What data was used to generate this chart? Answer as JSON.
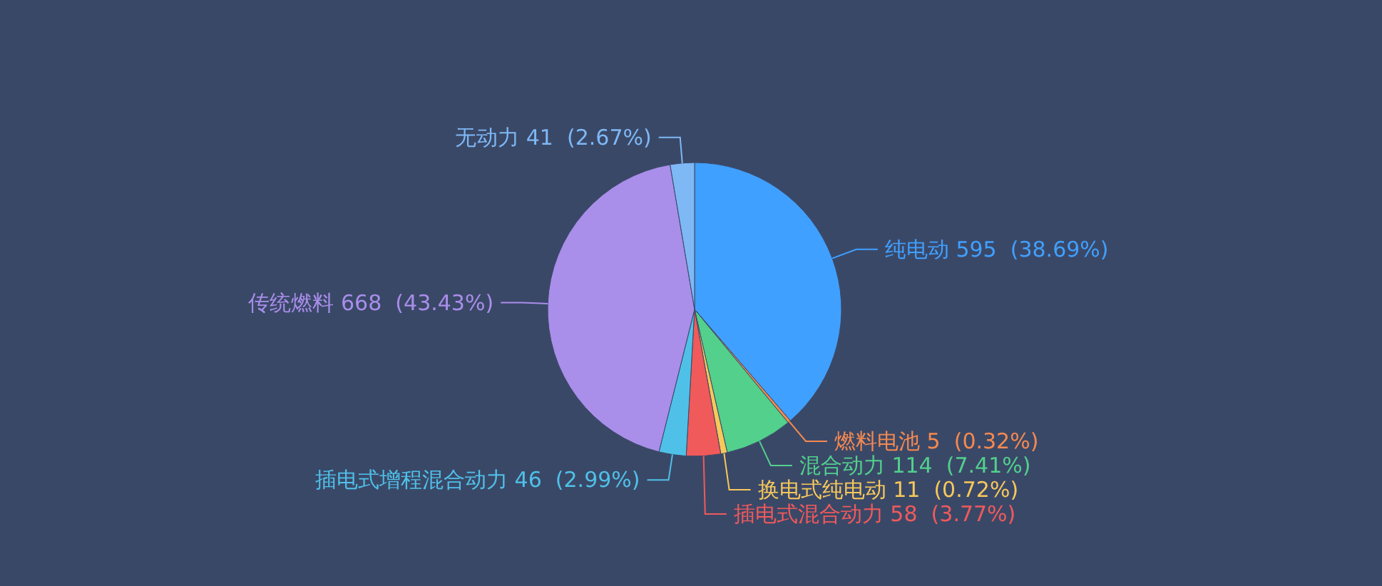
{
  "chart_data": {
    "type": "pie",
    "categories": [
      "纯电动",
      "燃料电池",
      "混合动力",
      "换电式纯电动",
      "插电式混合动力",
      "插电式增程混合动力",
      "传统燃料",
      "无动力"
    ],
    "values": [
      595,
      5,
      114,
      11,
      58,
      46,
      668,
      41
    ],
    "value_labels": [
      "595  (38.69%)",
      "5  (0.32%)",
      "114  (7.41%)",
      "11  (0.72%)",
      "58  (3.77%)",
      "46  (2.99%)",
      "668  (43.43%)",
      "41  (2.67%)"
    ],
    "colors": [
      "#40a0ff",
      "#f5894f",
      "#52d08c",
      "#f7c85a",
      "#f05a5a",
      "#4fc1e8",
      "#a98eea",
      "#7eb8f5"
    ]
  }
}
